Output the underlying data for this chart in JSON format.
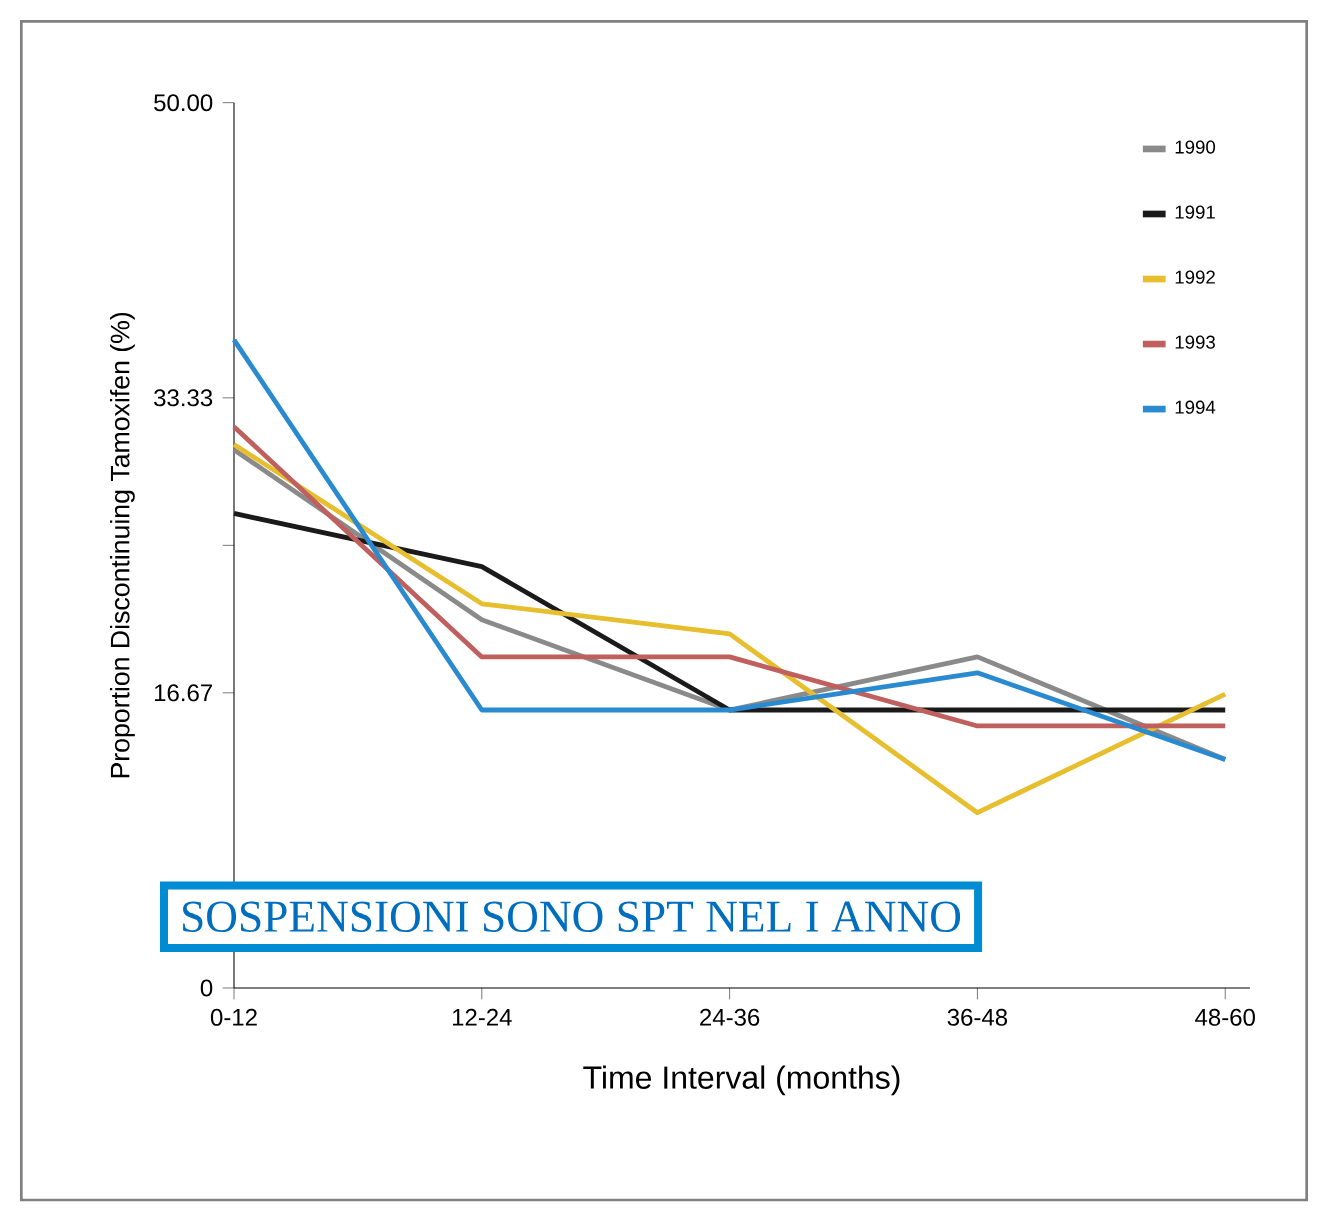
{
  "chart_data": {
    "type": "line",
    "xlabel": "Time Interval (months)",
    "ylabel": "Proportion Discontinuing Tamoxifen (%)",
    "categories": [
      "0-12",
      "12-24",
      "24-36",
      "36-48",
      "48-60"
    ],
    "ylim": [
      0,
      50
    ],
    "yticks": [
      {
        "value": 0,
        "label": "0"
      },
      {
        "value": 16.67,
        "label": "16.67"
      },
      {
        "value": 25,
        "label": null
      },
      {
        "value": 33.33,
        "label": "33.33"
      },
      {
        "value": 50,
        "label": "50.00"
      }
    ],
    "series": [
      {
        "name": "1990",
        "color": "#8a8a8a",
        "values": [
          30.4,
          20.8,
          15.7,
          18.7,
          12.9
        ]
      },
      {
        "name": "1991",
        "color": "#1a1a1a",
        "values": [
          26.8,
          23.8,
          15.7,
          15.7,
          15.7
        ]
      },
      {
        "name": "1992",
        "color": "#e6be2e",
        "values": [
          30.7,
          21.7,
          20.0,
          9.9,
          16.6
        ]
      },
      {
        "name": "1993",
        "color": "#c0605e",
        "values": [
          31.7,
          18.7,
          18.7,
          14.8,
          14.8
        ]
      },
      {
        "name": "1994",
        "color": "#2a8ad0",
        "values": [
          36.6,
          15.7,
          15.7,
          17.8,
          12.9
        ]
      }
    ],
    "legend": "top right",
    "grid": false,
    "marker": "none",
    "line_style": "solid",
    "annotations": [
      "SOSPENSIONI SONO SPT NEL I ANNO"
    ]
  }
}
